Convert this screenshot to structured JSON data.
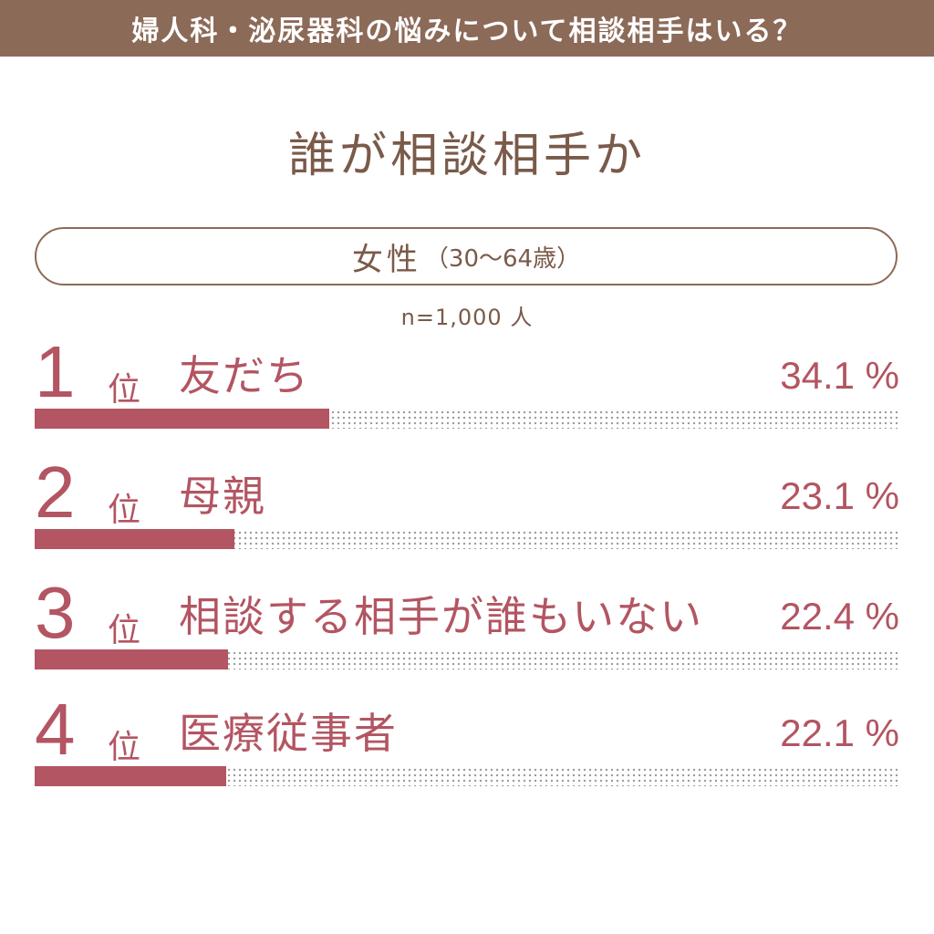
{
  "header": {
    "title": "婦人科・泌尿器科の悩みについて相談相手はいる？"
  },
  "subtitle": "誰が相談相手か",
  "group": {
    "label": "女性",
    "age_range": "（30〜64歳）"
  },
  "sample_size": "n=1,000 人",
  "colors": {
    "header_bg": "#8c6a58",
    "accent": "#b35562",
    "text_brown": "#7a5a49"
  },
  "chart_data": {
    "type": "bar",
    "categories": [
      "友だち",
      "母親",
      "相談する相手が誰もいない",
      "医療従事者"
    ],
    "values": [
      34.1,
      23.1,
      22.4,
      22.1
    ],
    "value_labels": [
      "34.1 %",
      "23.1 %",
      "22.4 %",
      "22.1 %"
    ],
    "ranks": [
      "1",
      "2",
      "3",
      "4"
    ],
    "rank_suffix": "位",
    "xlim": [
      0,
      100
    ]
  }
}
